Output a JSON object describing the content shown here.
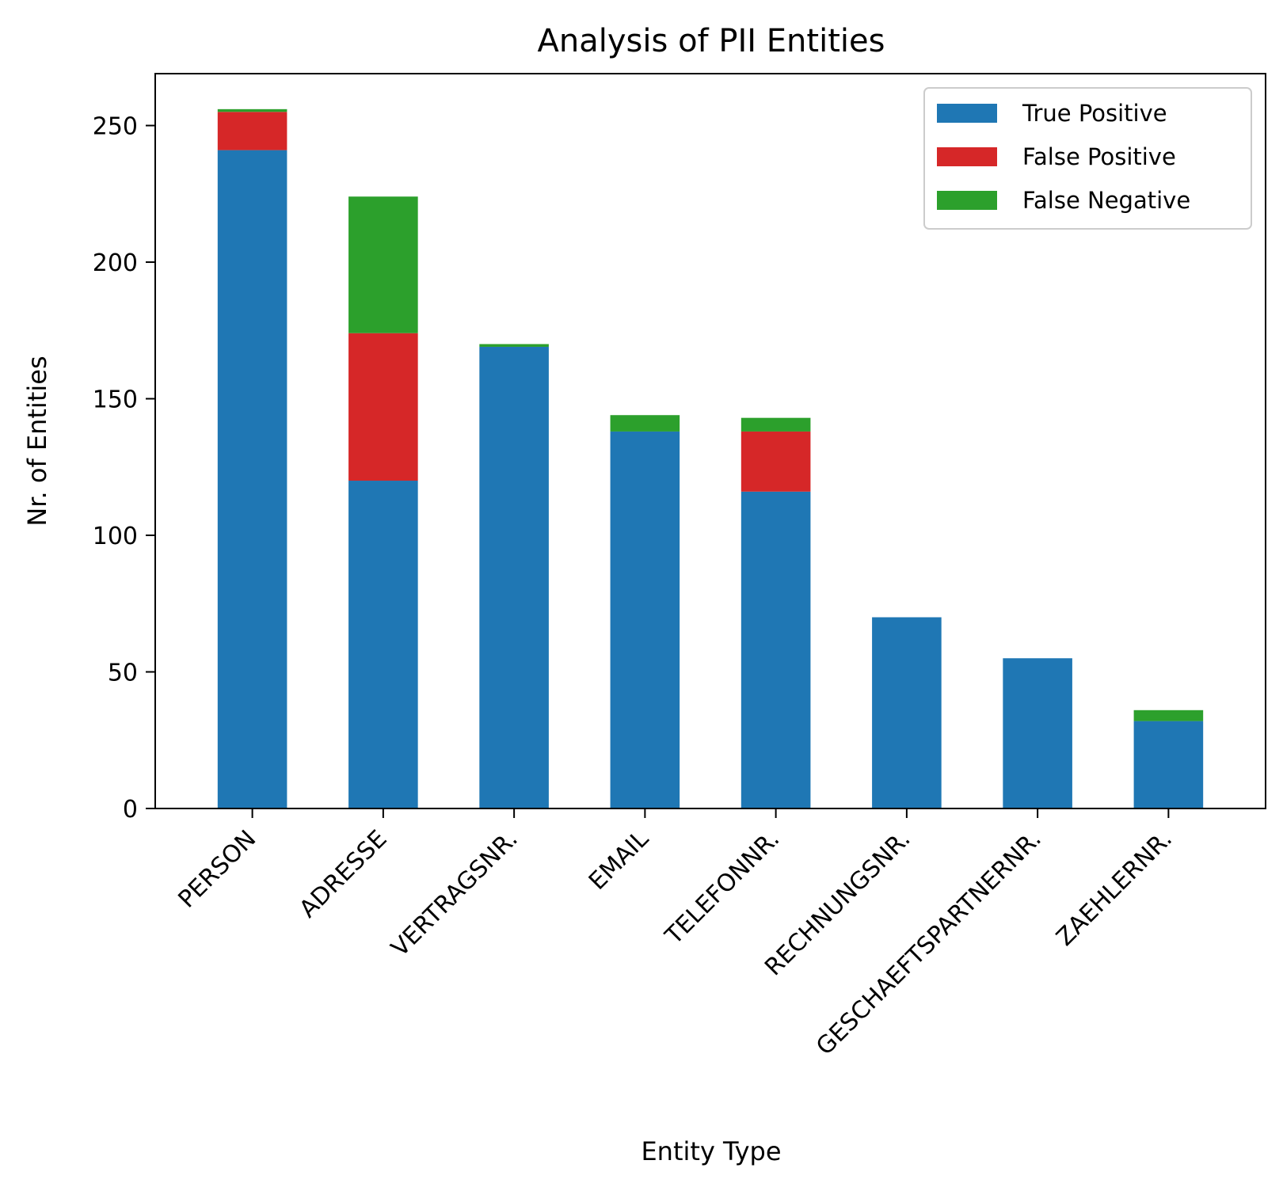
{
  "chart_data": {
    "type": "bar",
    "stacked": true,
    "title": "Analysis of PII Entities",
    "xlabel": "Entity Type",
    "ylabel": "Nr. of Entities",
    "categories": [
      "PERSON",
      "ADRESSE",
      "VERTRAGSNR.",
      "EMAIL",
      "TELEFONNR.",
      "RECHNUNGSNR.",
      "GESCHAEFTSPARTNERNR.",
      "ZAEHLERNR."
    ],
    "series": [
      {
        "name": "True Positive",
        "color": "#1f77b4",
        "values": [
          241,
          120,
          169,
          138,
          116,
          70,
          55,
          32
        ]
      },
      {
        "name": "False Positive",
        "color": "#d62728",
        "values": [
          14,
          54,
          0,
          0,
          22,
          0,
          0,
          0
        ]
      },
      {
        "name": "False Negative",
        "color": "#2ca02c",
        "values": [
          1,
          50,
          1,
          6,
          5,
          0,
          0,
          4
        ]
      }
    ],
    "ylim": [
      0,
      269
    ],
    "yticks": [
      0,
      50,
      100,
      150,
      200,
      250
    ],
    "grid": false,
    "legend_position": "top-right"
  }
}
